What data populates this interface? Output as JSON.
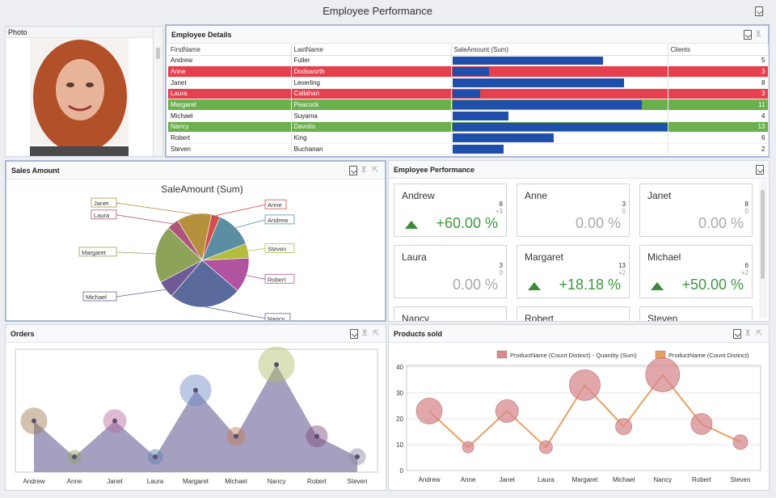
{
  "title": "Employee Performance",
  "photo": {
    "header": "Photo"
  },
  "details": {
    "header": "Employee Details",
    "columns": [
      "FirstName",
      "LastName",
      "SaleAmount (Sum)",
      "Clients"
    ],
    "rows": [
      {
        "first": "Andrew",
        "last": "Fuller",
        "sale": 0.7,
        "clients": "5",
        "style": "normal"
      },
      {
        "first": "Anne",
        "last": "Dodsworth",
        "sale": 0.17,
        "clients": "3",
        "style": "red"
      },
      {
        "first": "Janet",
        "last": "Leverling",
        "sale": 0.8,
        "clients": "8",
        "style": "normal"
      },
      {
        "first": "Laura",
        "last": "Callahan",
        "sale": 0.13,
        "clients": "3",
        "style": "red"
      },
      {
        "first": "Margaret",
        "last": "Peacock",
        "sale": 0.88,
        "clients": "11",
        "style": "green"
      },
      {
        "first": "Michael",
        "last": "Suyama",
        "sale": 0.26,
        "clients": "4",
        "style": "normal"
      },
      {
        "first": "Nancy",
        "last": "Davolio",
        "sale": 1.0,
        "clients": "13",
        "style": "green"
      },
      {
        "first": "Robert",
        "last": "King",
        "sale": 0.47,
        "clients": "6",
        "style": "normal"
      },
      {
        "first": "Steven",
        "last": "Buchanan",
        "sale": 0.24,
        "clients": "2",
        "style": "normal"
      }
    ]
  },
  "sales": {
    "header": "Sales Amount",
    "chart_data": {
      "type": "pie",
      "title": "SaleAmount (Sum)",
      "slices": [
        {
          "label": "Janet",
          "value": 12,
          "color": "#b5913e"
        },
        {
          "label": "Anne",
          "value": 3,
          "color": "#d04f4a"
        },
        {
          "label": "Andrew",
          "value": 13,
          "color": "#5b8da3"
        },
        {
          "label": "Steven",
          "value": 5,
          "color": "#b5bd3f"
        },
        {
          "label": "Robert",
          "value": 12,
          "color": "#b054a0"
        },
        {
          "label": "Nancy",
          "value": 25,
          "color": "#5a6a9d"
        },
        {
          "label": "Michael",
          "value": 6,
          "color": "#6e5a94"
        },
        {
          "label": "Margaret",
          "value": 20,
          "color": "#8ea35a"
        },
        {
          "label": "Laura",
          "value": 4,
          "color": "#b0557a"
        }
      ]
    }
  },
  "perf": {
    "header": "Employee Performance",
    "cards": [
      {
        "name": "Andrew",
        "target": "8",
        "delta": "+3",
        "pct": "+60.00 %",
        "up": true
      },
      {
        "name": "Anne",
        "target": "3",
        "delta": "0",
        "pct": "0.00 %",
        "up": false
      },
      {
        "name": "Janet",
        "target": "8",
        "delta": "0",
        "pct": "0.00 %",
        "up": false
      },
      {
        "name": "Laura",
        "target": "3",
        "delta": "0",
        "pct": "0.00 %",
        "up": false
      },
      {
        "name": "Margaret",
        "target": "13",
        "delta": "+2",
        "pct": "+18.18 %",
        "up": true
      },
      {
        "name": "Michael",
        "target": "6",
        "delta": "+2",
        "pct": "+50.00 %",
        "up": true
      },
      {
        "name": "Nancy",
        "target": "",
        "delta": "",
        "pct": "",
        "up": false
      },
      {
        "name": "Robert",
        "target": "",
        "delta": "",
        "pct": "",
        "up": false
      },
      {
        "name": "Steven",
        "target": "",
        "delta": "",
        "pct": "",
        "up": false
      }
    ]
  },
  "orders": {
    "header": "Orders",
    "chart_data": {
      "type": "area",
      "categories": [
        "Andrew",
        "Anne",
        "Janet",
        "Laura",
        "Margaret",
        "Michael",
        "Nancy",
        "Robert",
        "Steven"
      ],
      "values": [
        10,
        3,
        10,
        3,
        16,
        7,
        21,
        7,
        3
      ],
      "bubble_sizes": [
        16,
        8,
        14,
        9,
        19,
        11,
        22,
        13,
        10
      ],
      "bubble_colors": [
        "#a27a52",
        "#8aa25a",
        "#b86aa0",
        "#5b7fb0",
        "#6e86c4",
        "#c77a52",
        "#b5bd6a",
        "#7a4a7a",
        "#8a8aa0"
      ],
      "ylim": [
        0,
        24
      ]
    }
  },
  "products": {
    "header": "Products sold",
    "chart_data": {
      "type": "line",
      "categories": [
        "Andrew",
        "Anne",
        "Janet",
        "Laura",
        "Margaret",
        "Michael",
        "Nancy",
        "Robert",
        "Steven"
      ],
      "series": [
        {
          "name": "ProductName (Count Distinct) - Quantity (Sum)",
          "values": [
            23,
            9,
            23,
            9,
            33,
            17,
            37,
            18,
            11
          ],
          "sizes": [
            16,
            7,
            14,
            8,
            19,
            10,
            21,
            13,
            9
          ],
          "color": "#d98a8e"
        },
        {
          "name": "ProductName (Count Distinct)",
          "values": [
            23,
            9,
            23,
            9,
            33,
            17,
            37,
            18,
            11
          ],
          "color": "#e8a060"
        }
      ],
      "ylim": [
        0,
        40
      ],
      "yticks": [
        0,
        10,
        20,
        30,
        40
      ]
    }
  }
}
